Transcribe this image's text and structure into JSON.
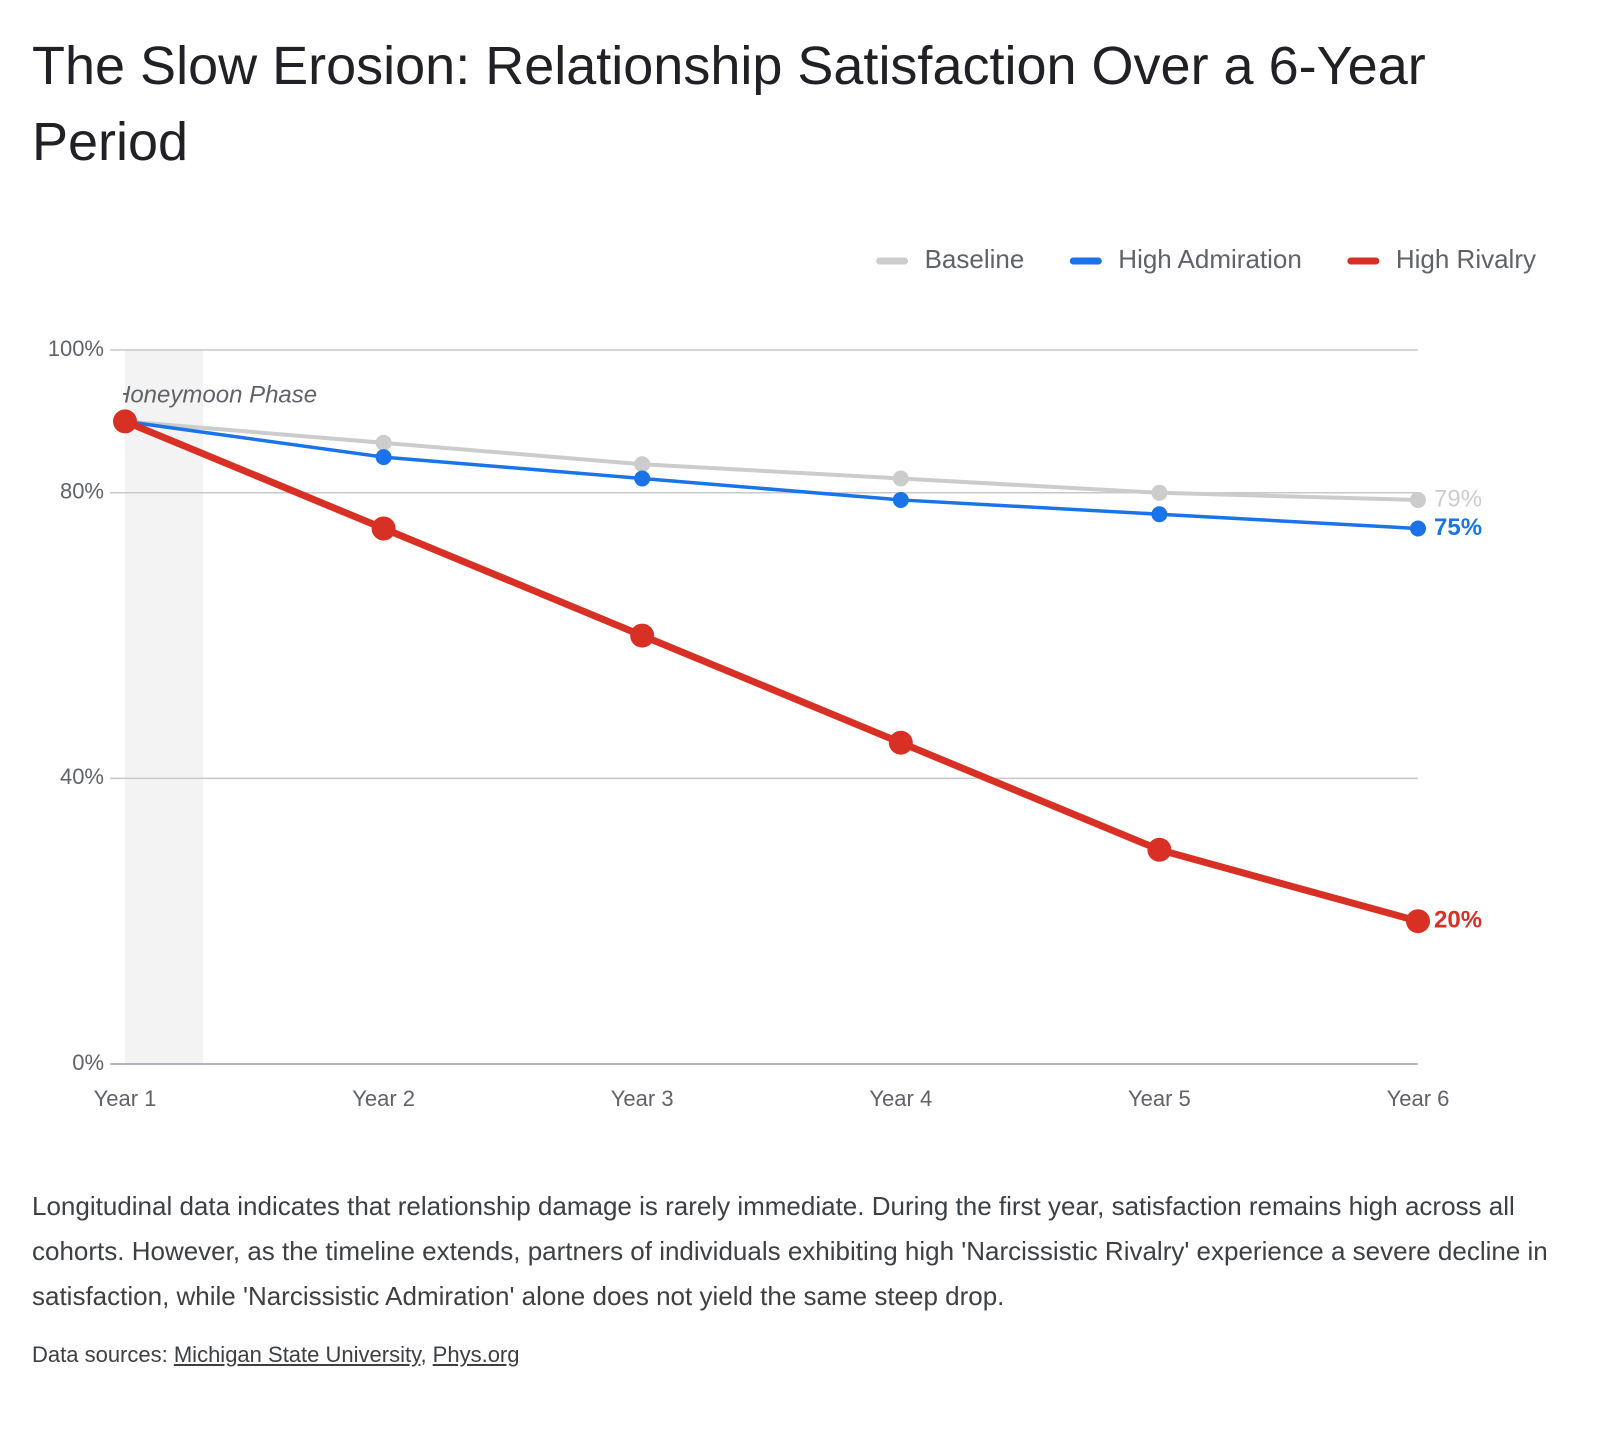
{
  "chart_data": {
    "type": "line",
    "title": "The Slow Erosion: Relationship Satisfaction Over a 6-Year Period",
    "categories": [
      "Year 1",
      "Year 2",
      "Year 3",
      "Year 4",
      "Year 5",
      "Year 6"
    ],
    "series": [
      {
        "name": "Baseline",
        "color": "#cccccc",
        "values": [
          90,
          87,
          84,
          82,
          80,
          79
        ],
        "value_labels": [
          null,
          null,
          null,
          null,
          null,
          "79%"
        ]
      },
      {
        "name": "High Admiration",
        "color": "#1a73e8",
        "values": [
          90,
          85,
          82,
          79,
          77,
          75
        ],
        "value_labels": [
          null,
          null,
          null,
          null,
          null,
          "75%"
        ]
      },
      {
        "name": "High Rivalry",
        "color": "#d93025",
        "values": [
          90,
          75,
          60,
          45,
          30,
          20
        ],
        "value_labels": [
          null,
          null,
          null,
          null,
          null,
          "20%"
        ]
      }
    ],
    "ylim": [
      0,
      100
    ],
    "yticks": [
      {
        "value": 0,
        "label": "0%"
      },
      {
        "value": 40,
        "label": "40%"
      },
      {
        "value": 80,
        "label": "80%"
      },
      {
        "value": 100,
        "label": "100%"
      }
    ],
    "grid": true,
    "legend": "top-right",
    "annotation": "Honeymoon Phase"
  },
  "description": "Longitudinal data indicates that relationship damage is rarely immediate. During the first year, satisfaction remains high across all cohorts. However, as the timeline extends, partners of individuals exhibiting high 'Narcissistic Rivalry' experience a severe decline in satisfaction, while 'Narcissistic Admiration' alone does not yield the same steep drop.",
  "sources": {
    "label": "Data sources:",
    "links": [
      "Michigan State University",
      "Phys.org"
    ]
  }
}
